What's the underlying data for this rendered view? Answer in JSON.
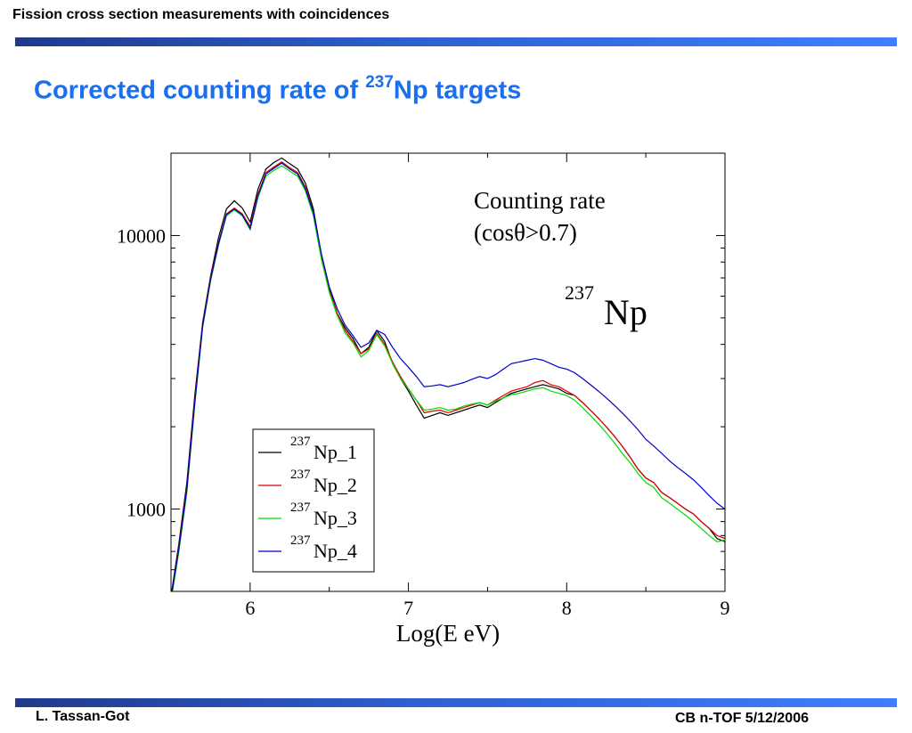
{
  "header": {
    "text": "Fission cross section measurements with coincidences"
  },
  "slide": {
    "title_main": "Corrected counting rate of ",
    "title_sup": "237",
    "title_end": "Np targets"
  },
  "footer": {
    "left": "L. Tassan-Got",
    "right": "CB n-TOF 5/12/2006"
  },
  "colors": {
    "accent_bar": "#2f5fd0",
    "title": "#1a6ff0"
  },
  "chart_data": {
    "type": "line",
    "xlabel": "Log(E eV)",
    "ylabel": "",
    "xlim": [
      5.5,
      9.0
    ],
    "ylim": [
      500,
      20000
    ],
    "yscale": "log",
    "x_ticks": [
      6,
      7,
      8,
      9
    ],
    "x_tick_labels": [
      "6",
      "7",
      "8",
      "9"
    ],
    "y_ticks": [
      1000,
      10000
    ],
    "y_tick_labels": [
      "1000",
      "10000"
    ],
    "annotation_line1": "Counting rate",
    "annotation_line2": "(cosθ>0.7)",
    "annotation_iso_sup": "237",
    "annotation_iso": "Np",
    "legend_position": "lower-left",
    "series": [
      {
        "name": "Np_1",
        "name_sup": "237",
        "color": "#000000",
        "x": [
          5.5,
          5.55,
          5.6,
          5.65,
          5.7,
          5.75,
          5.8,
          5.85,
          5.9,
          5.95,
          6.0,
          6.05,
          6.1,
          6.15,
          6.2,
          6.25,
          6.3,
          6.35,
          6.4,
          6.45,
          6.5,
          6.55,
          6.6,
          6.65,
          6.7,
          6.75,
          6.8,
          6.85,
          6.9,
          6.95,
          7.0,
          7.05,
          7.1,
          7.15,
          7.2,
          7.25,
          7.3,
          7.35,
          7.4,
          7.45,
          7.5,
          7.55,
          7.6,
          7.65,
          7.7,
          7.75,
          7.8,
          7.85,
          7.9,
          7.95,
          8.0,
          8.05,
          8.1,
          8.15,
          8.2,
          8.25,
          8.3,
          8.35,
          8.4,
          8.45,
          8.5,
          8.55,
          8.6,
          8.65,
          8.7,
          8.75,
          8.8,
          8.85,
          8.9,
          8.95,
          9.0
        ],
        "y": [
          480,
          750,
          1250,
          2600,
          4800,
          7100,
          9800,
          12500,
          13400,
          12600,
          11200,
          14800,
          17500,
          18500,
          19200,
          18300,
          17500,
          15500,
          12500,
          8500,
          6400,
          5200,
          4600,
          4200,
          3700,
          3900,
          4500,
          4100,
          3400,
          3000,
          2700,
          2400,
          2150,
          2200,
          2250,
          2200,
          2250,
          2300,
          2350,
          2400,
          2350,
          2450,
          2550,
          2650,
          2700,
          2750,
          2800,
          2850,
          2800,
          2750,
          2650,
          2600,
          2450,
          2300,
          2150,
          2000,
          1850,
          1700,
          1550,
          1400,
          1300,
          1250,
          1150,
          1100,
          1050,
          1000,
          960,
          900,
          850,
          780,
          760
        ]
      },
      {
        "name": "Np_2",
        "name_sup": "237",
        "color": "#dd0000",
        "x": [
          5.5,
          5.55,
          5.6,
          5.65,
          5.7,
          5.75,
          5.8,
          5.85,
          5.9,
          5.95,
          6.0,
          6.05,
          6.1,
          6.15,
          6.2,
          6.25,
          6.3,
          6.35,
          6.4,
          6.45,
          6.5,
          6.55,
          6.6,
          6.65,
          6.7,
          6.75,
          6.8,
          6.85,
          6.9,
          6.95,
          7.0,
          7.05,
          7.1,
          7.15,
          7.2,
          7.25,
          7.3,
          7.35,
          7.4,
          7.45,
          7.5,
          7.55,
          7.6,
          7.65,
          7.7,
          7.75,
          7.8,
          7.85,
          7.9,
          7.95,
          8.0,
          8.05,
          8.1,
          8.15,
          8.2,
          8.25,
          8.3,
          8.35,
          8.4,
          8.45,
          8.5,
          8.55,
          8.6,
          8.65,
          8.7,
          8.75,
          8.8,
          8.85,
          8.9,
          8.95,
          9.0
        ],
        "y": [
          470,
          730,
          1200,
          2500,
          4700,
          7000,
          9400,
          12000,
          12600,
          12000,
          10800,
          14200,
          17000,
          17800,
          18600,
          17700,
          17000,
          15000,
          12200,
          8400,
          6300,
          5200,
          4500,
          4100,
          3700,
          3850,
          4400,
          4000,
          3450,
          3050,
          2750,
          2500,
          2250,
          2280,
          2300,
          2250,
          2300,
          2350,
          2400,
          2450,
          2400,
          2500,
          2600,
          2700,
          2750,
          2800,
          2900,
          2950,
          2850,
          2800,
          2700,
          2600,
          2450,
          2300,
          2150,
          2000,
          1850,
          1700,
          1550,
          1400,
          1300,
          1250,
          1150,
          1100,
          1050,
          1000,
          960,
          900,
          850,
          800,
          780
        ]
      },
      {
        "name": "Np_3",
        "name_sup": "237",
        "color": "#00dd00",
        "x": [
          5.5,
          5.55,
          5.6,
          5.65,
          5.7,
          5.75,
          5.8,
          5.85,
          5.9,
          5.95,
          6.0,
          6.05,
          6.1,
          6.15,
          6.2,
          6.25,
          6.3,
          6.35,
          6.4,
          6.45,
          6.5,
          6.55,
          6.6,
          6.65,
          6.7,
          6.75,
          6.8,
          6.85,
          6.9,
          6.95,
          7.0,
          7.05,
          7.1,
          7.15,
          7.2,
          7.25,
          7.3,
          7.35,
          7.4,
          7.45,
          7.5,
          7.55,
          7.6,
          7.65,
          7.7,
          7.75,
          7.8,
          7.85,
          7.9,
          7.95,
          8.0,
          8.05,
          8.1,
          8.15,
          8.2,
          8.25,
          8.3,
          8.35,
          8.4,
          8.45,
          8.5,
          8.55,
          8.6,
          8.65,
          8.7,
          8.75,
          8.8,
          8.85,
          8.9,
          8.95,
          9.0
        ],
        "y": [
          460,
          700,
          1150,
          2400,
          4600,
          6800,
          9200,
          11800,
          12400,
          11800,
          10500,
          13800,
          16500,
          17300,
          18000,
          17200,
          16500,
          14500,
          11800,
          8200,
          6200,
          5100,
          4400,
          4050,
          3600,
          3800,
          4350,
          3950,
          3400,
          3000,
          2750,
          2500,
          2300,
          2320,
          2350,
          2300,
          2320,
          2380,
          2420,
          2450,
          2400,
          2480,
          2550,
          2620,
          2650,
          2700,
          2750,
          2780,
          2700,
          2650,
          2600,
          2500,
          2350,
          2200,
          2050,
          1900,
          1750,
          1600,
          1480,
          1350,
          1250,
          1200,
          1100,
          1050,
          1000,
          950,
          900,
          850,
          800,
          760,
          770
        ]
      },
      {
        "name": "Np_4",
        "name_sup": "237",
        "color": "#0000cc",
        "x": [
          5.5,
          5.55,
          5.6,
          5.65,
          5.7,
          5.75,
          5.8,
          5.85,
          5.9,
          5.95,
          6.0,
          6.05,
          6.1,
          6.15,
          6.2,
          6.25,
          6.3,
          6.35,
          6.4,
          6.45,
          6.5,
          6.55,
          6.6,
          6.65,
          6.7,
          6.75,
          6.8,
          6.85,
          6.9,
          6.95,
          7.0,
          7.05,
          7.1,
          7.15,
          7.2,
          7.25,
          7.3,
          7.35,
          7.4,
          7.45,
          7.5,
          7.55,
          7.6,
          7.65,
          7.7,
          7.75,
          7.8,
          7.85,
          7.9,
          7.95,
          8.0,
          8.05,
          8.1,
          8.15,
          8.2,
          8.25,
          8.3,
          8.35,
          8.4,
          8.45,
          8.5,
          8.55,
          8.6,
          8.65,
          8.7,
          8.75,
          8.8,
          8.85,
          8.9,
          8.95,
          9.0
        ],
        "y": [
          470,
          720,
          1180,
          2450,
          4650,
          6900,
          9300,
          11900,
          12500,
          11900,
          10600,
          14000,
          16800,
          17600,
          18400,
          17500,
          16800,
          14800,
          12100,
          8600,
          6500,
          5400,
          4700,
          4300,
          3900,
          4050,
          4500,
          4350,
          3900,
          3550,
          3300,
          3050,
          2800,
          2820,
          2850,
          2800,
          2850,
          2900,
          2980,
          3050,
          3000,
          3100,
          3250,
          3400,
          3450,
          3500,
          3550,
          3500,
          3400,
          3300,
          3250,
          3150,
          3000,
          2850,
          2700,
          2550,
          2400,
          2250,
          2100,
          1950,
          1800,
          1700,
          1600,
          1500,
          1420,
          1350,
          1280,
          1200,
          1120,
          1050,
          1000
        ]
      }
    ]
  }
}
